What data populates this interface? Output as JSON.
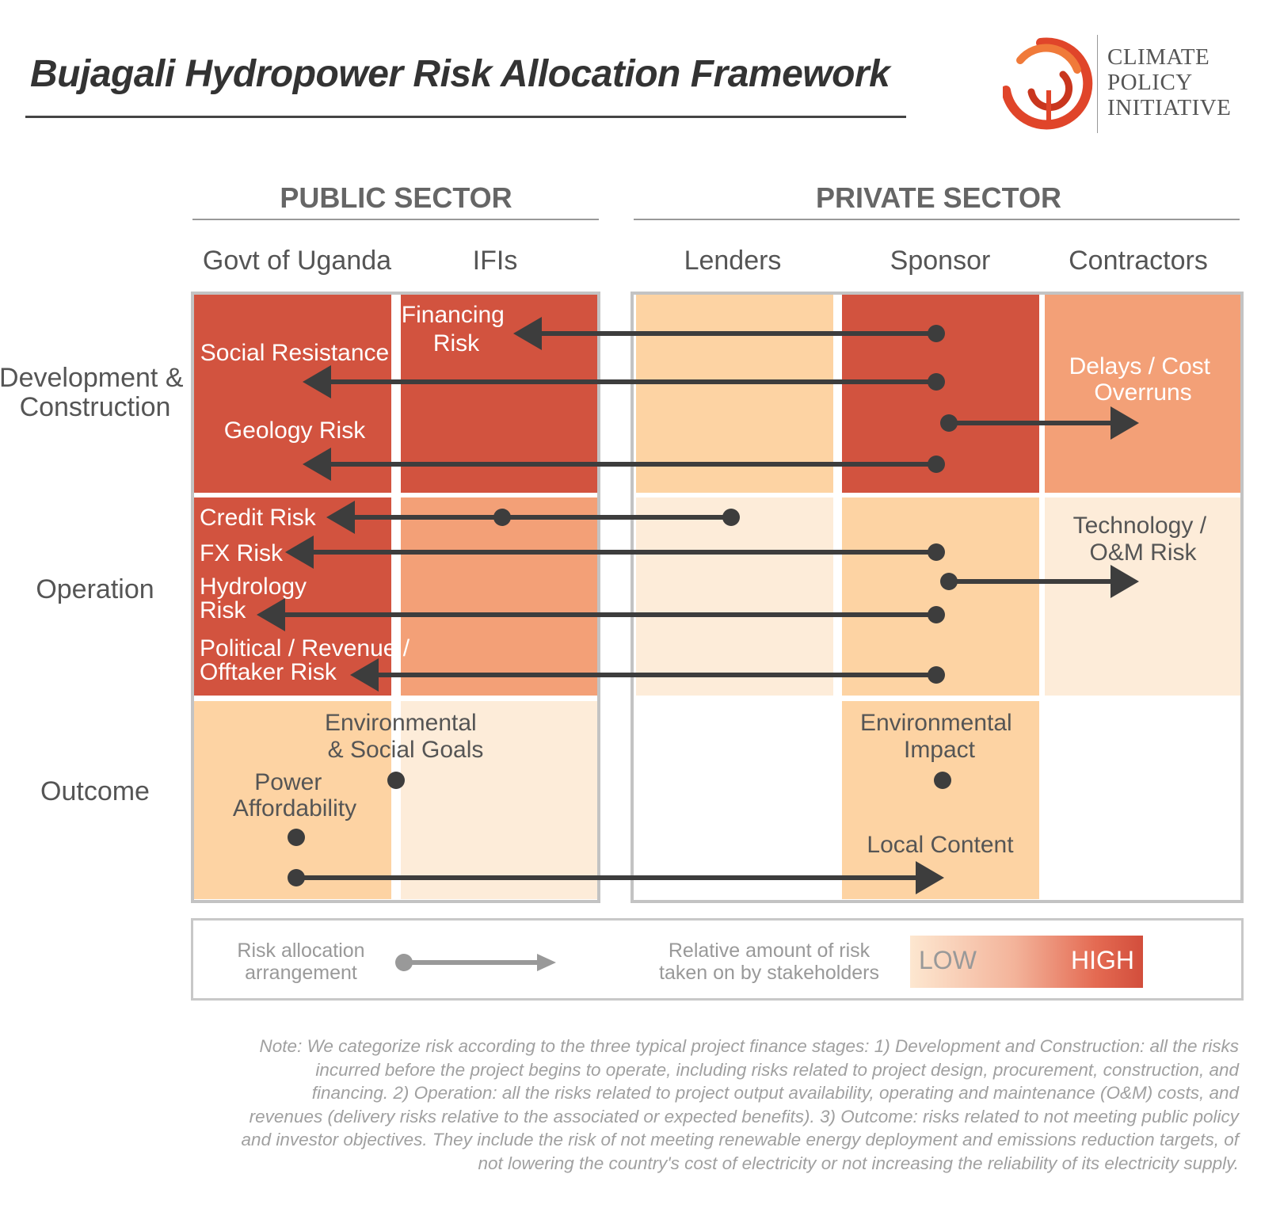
{
  "title": "Bujagali Hydropower Risk Allocation Framework",
  "logo": {
    "line1": "CLIMATE",
    "line2": "POLICY",
    "line3": "INITIATIVE",
    "icon": "cpi-swirl-logo-icon"
  },
  "sectors": {
    "public": "PUBLIC SECTOR",
    "private": "PRIVATE SECTOR"
  },
  "columns": [
    "Govt of Uganda",
    "IFIs",
    "Lenders",
    "Sponsor",
    "Contractors"
  ],
  "stages": [
    "Development & Construction",
    "Operation",
    "Outcome"
  ],
  "cell_levels": {
    "note": "relative amount of risk taken on: 0 none, 1 low, 2 medium, 3 high, 4 very high",
    "rows": [
      [
        4,
        4,
        2,
        4,
        3
      ],
      [
        4,
        3,
        1,
        2,
        1
      ],
      [
        2,
        1,
        0,
        2,
        0
      ]
    ]
  },
  "colors": {
    "very_high": "#d2533f",
    "high": "#f3a077",
    "medium": "#fdd3a3",
    "low": "#fdecd9",
    "none": "#ffffff",
    "arrow": "#3d3d3d"
  },
  "risks": {
    "financing": "Financing Risk",
    "social": "Social Resistance",
    "geology": "Geology Risk",
    "delays": "Delays / Cost Overruns",
    "credit": "Credit Risk",
    "fx": "FX Risk",
    "hydrology": "Hydrology Risk",
    "political": "Political / Revenue / Offtaker Risk",
    "technology": "Technology / O&M Risk",
    "env_social": "Environmental & Social Goals",
    "power": "Power Affordability",
    "env_impact": "Environmental Impact",
    "local": "Local Content"
  },
  "allocations": [
    {
      "from": "Sponsor",
      "to": "IFIs",
      "risk": "Financing Risk"
    },
    {
      "from": "Sponsor",
      "to": "Govt of Uganda",
      "risk": "Social Resistance"
    },
    {
      "from": "Sponsor",
      "to": "Contractors",
      "risk": "Delays / Cost Overruns"
    },
    {
      "from": "Sponsor",
      "to": "Govt of Uganda",
      "risk": "Geology Risk"
    },
    {
      "from": "Lenders",
      "to": "Govt of Uganda",
      "risk": "Credit Risk",
      "via": "IFIs"
    },
    {
      "from": "Sponsor",
      "to": "Govt of Uganda",
      "risk": "FX Risk"
    },
    {
      "from": "Sponsor",
      "to": "Contractors",
      "risk": "Technology / O&M Risk"
    },
    {
      "from": "Sponsor",
      "to": "Govt of Uganda",
      "risk": "Hydrology Risk"
    },
    {
      "from": "Sponsor",
      "to": "Govt of Uganda",
      "risk": "Political / Revenue / Offtaker Risk"
    },
    {
      "from": "Govt of Uganda",
      "to": "Sponsor",
      "risk": "Local Content"
    }
  ],
  "legend": {
    "arrangement": "Risk allocation arrangement",
    "relative": "Relative amount of risk taken on by stakeholders",
    "low": "LOW",
    "high": "HIGH"
  },
  "note": "Note: We categorize risk according to the three typical project finance stages: 1) Development and Construction: all the risks incurred before the project begins to operate, including risks related to project design, procurement, construction, and financing. 2) Operation: all the risks related to project output availability, operating and maintenance (O&M) costs, and revenues (delivery risks relative to the associated or expected benefits). 3) Outcome: risks related to not meeting public policy and investor objectives. They include the risk of not meeting renewable energy deployment and emissions reduction targets, of not lowering the country's cost of electricity or not increasing the reliability of its electricity supply."
}
